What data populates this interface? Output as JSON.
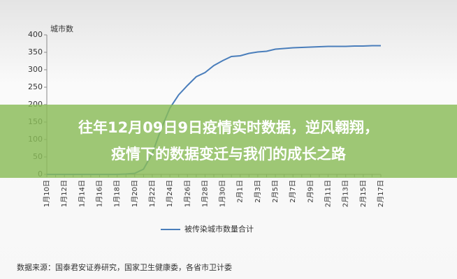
{
  "chart_data": {
    "type": "line",
    "y_label": "城市数",
    "categories": [
      "1月10日",
      null,
      "1月12日",
      null,
      "1月14日",
      null,
      "1月16日",
      null,
      "1月18日",
      null,
      "1月20日",
      null,
      "1月22日",
      null,
      "1月24日",
      null,
      "1月26日",
      null,
      "1月28日",
      null,
      "1月30日",
      null,
      "2月1日",
      null,
      "2月3日",
      null,
      "2月5日",
      null,
      "2月7日",
      null,
      "2月9日",
      null,
      "2月11日",
      null,
      "2月13日",
      null,
      "2月15日",
      null,
      "2月17日"
    ],
    "series": [
      {
        "name": "被传染城市数量合计",
        "color": "#4a7ebb",
        "values": [
          0,
          0,
          0,
          0,
          0,
          0,
          0,
          0,
          0,
          1,
          3,
          15,
          60,
          130,
          190,
          228,
          255,
          280,
          292,
          312,
          326,
          338,
          340,
          347,
          351,
          353,
          359,
          361,
          363,
          364,
          365,
          366,
          367,
          367,
          367,
          368,
          368,
          369,
          369
        ]
      }
    ],
    "ylim": [
      0,
      400
    ],
    "yticks": [
      0,
      50,
      100,
      150,
      200,
      250,
      300,
      350,
      400
    ],
    "source": "数据来源：国泰君安证券研究，国家卫生健康委，各省市卫计委"
  },
  "overlay": {
    "lines": [
      "往年12月09日9日疫情实时数据，逆风翱翔，",
      "疫情下的数据变迁与我们的成长之路"
    ]
  }
}
